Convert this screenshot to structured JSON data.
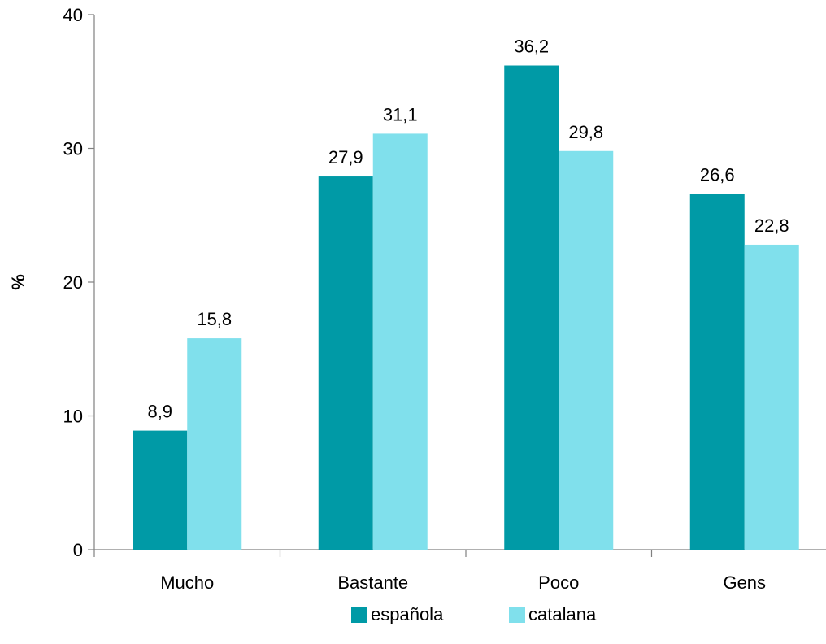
{
  "chart_data": {
    "type": "bar",
    "categories": [
      "Mucho",
      "Bastante",
      "Poco",
      "Gens"
    ],
    "series": [
      {
        "name": "española",
        "values": [
          8.9,
          27.9,
          36.2,
          26.6
        ],
        "color": "#009AA6",
        "labels": [
          "8,9",
          "27,9",
          "36,2",
          "26,6"
        ]
      },
      {
        "name": "catalana",
        "values": [
          15.8,
          31.1,
          29.8,
          22.8
        ],
        "color": "#80E0EC",
        "labels": [
          "15,8",
          "31,1",
          "29,8",
          "22,8"
        ]
      }
    ],
    "title": "",
    "xlabel": "",
    "ylabel": "%",
    "ylim": [
      0,
      40
    ],
    "yticks": [
      0,
      10,
      20,
      30,
      40
    ],
    "ytick_labels": [
      "0",
      "10",
      "20",
      "30",
      "40"
    ],
    "grid": false,
    "legend_position": "bottom-center"
  }
}
